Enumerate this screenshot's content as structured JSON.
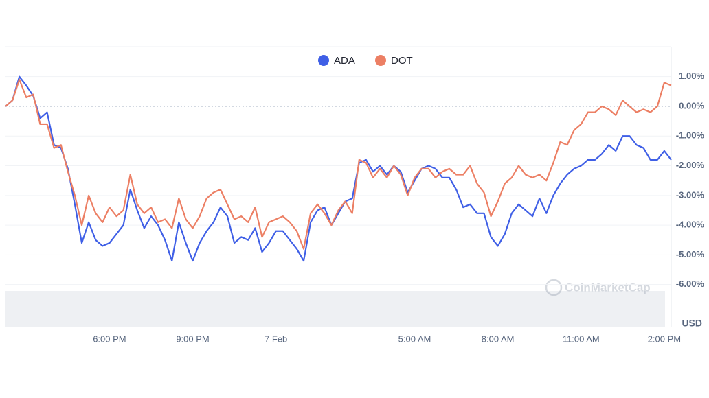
{
  "chart_data": {
    "type": "line",
    "categories": [
      null,
      null,
      null,
      null,
      null,
      null,
      null,
      null,
      null,
      null,
      null,
      null,
      null,
      null,
      null,
      "6:00 PM",
      null,
      null,
      null,
      null,
      null,
      null,
      null,
      null,
      null,
      null,
      null,
      "9:00 PM",
      null,
      null,
      null,
      null,
      null,
      null,
      null,
      null,
      null,
      null,
      null,
      "7 Feb",
      null,
      null,
      null,
      null,
      null,
      null,
      null,
      null,
      null,
      null,
      null,
      null,
      null,
      null,
      null,
      null,
      null,
      null,
      null,
      "5:00 AM",
      null,
      null,
      null,
      null,
      null,
      null,
      null,
      null,
      null,
      null,
      null,
      "8:00 AM",
      null,
      null,
      null,
      null,
      null,
      null,
      null,
      null,
      null,
      null,
      null,
      "11:00 AM",
      null,
      null,
      null,
      null,
      null,
      null,
      null,
      null,
      null,
      null,
      null,
      "2:00 PM",
      null
    ],
    "series": [
      {
        "name": "ADA",
        "color": "#3f5fe6",
        "values": [
          0.0,
          0.2,
          1.0,
          0.7,
          0.35,
          -0.4,
          -0.2,
          -1.3,
          -1.4,
          -2.1,
          -3.3,
          -4.6,
          -3.9,
          -4.5,
          -4.7,
          -4.6,
          -4.3,
          -4.0,
          -2.8,
          -3.5,
          -4.1,
          -3.7,
          -4.0,
          -4.5,
          -5.2,
          -3.9,
          -4.6,
          -5.2,
          -4.6,
          -4.2,
          -3.9,
          -3.4,
          -3.7,
          -4.6,
          -4.4,
          -4.5,
          -4.1,
          -4.9,
          -4.6,
          -4.2,
          -4.2,
          -4.5,
          -4.8,
          -5.2,
          -3.9,
          -3.5,
          -3.4,
          -4.0,
          -3.6,
          -3.2,
          -3.1,
          -1.9,
          -1.8,
          -2.2,
          -2.0,
          -2.3,
          -2.0,
          -2.2,
          -2.9,
          -2.5,
          -2.1,
          -2.0,
          -2.1,
          -2.4,
          -2.4,
          -2.8,
          -3.4,
          -3.3,
          -3.6,
          -3.6,
          -4.4,
          -4.7,
          -4.3,
          -3.6,
          -3.3,
          -3.5,
          -3.7,
          -3.1,
          -3.6,
          -3.0,
          -2.6,
          -2.3,
          -2.1,
          -2.0,
          -1.8,
          -1.8,
          -1.6,
          -1.3,
          -1.5,
          -1.0,
          -1.0,
          -1.3,
          -1.4,
          -1.8,
          -1.8,
          -1.5,
          -1.8
        ]
      },
      {
        "name": "DOT",
        "color": "#ec7f64",
        "values": [
          0.0,
          0.2,
          0.9,
          0.3,
          0.4,
          -0.6,
          -0.6,
          -1.4,
          -1.3,
          -2.2,
          -3.0,
          -4.0,
          -3.0,
          -3.6,
          -3.9,
          -3.4,
          -3.7,
          -3.5,
          -2.3,
          -3.3,
          -3.6,
          -3.4,
          -3.9,
          -3.8,
          -4.1,
          -3.1,
          -3.8,
          -4.1,
          -3.7,
          -3.1,
          -2.9,
          -2.8,
          -3.3,
          -3.8,
          -3.7,
          -3.9,
          -3.4,
          -4.4,
          -3.9,
          -3.8,
          -3.7,
          -3.9,
          -4.2,
          -4.8,
          -3.6,
          -3.3,
          -3.6,
          -4.0,
          -3.5,
          -3.2,
          -3.6,
          -1.8,
          -1.9,
          -2.4,
          -2.1,
          -2.4,
          -2.0,
          -2.3,
          -3.0,
          -2.4,
          -2.1,
          -2.1,
          -2.4,
          -2.2,
          -2.1,
          -2.3,
          -2.3,
          -2.0,
          -2.6,
          -2.9,
          -3.7,
          -3.2,
          -2.6,
          -2.4,
          -2.0,
          -2.3,
          -2.4,
          -2.3,
          -2.5,
          -1.9,
          -1.2,
          -1.3,
          -0.8,
          -0.6,
          -0.2,
          -0.2,
          0.0,
          -0.1,
          -0.3,
          0.2,
          0.0,
          -0.2,
          -0.1,
          -0.2,
          0.0,
          0.8,
          0.7
        ]
      }
    ],
    "ylim": [
      -6.1,
      2.0
    ],
    "yticks": [
      {
        "value": 1,
        "label": "1.00%"
      },
      {
        "value": 0,
        "label": "0.00%"
      },
      {
        "value": -1,
        "label": "-1.00%"
      },
      {
        "value": -2,
        "label": "-2.00%"
      },
      {
        "value": -3,
        "label": "-3.00%"
      },
      {
        "value": -4,
        "label": "-4.00%"
      },
      {
        "value": -5,
        "label": "-5.00%"
      },
      {
        "value": -6,
        "label": "-6.00%"
      }
    ],
    "y_axis_unit": "USD",
    "watermark": "CoinMarketCap",
    "legend": "top",
    "grid": true
  }
}
